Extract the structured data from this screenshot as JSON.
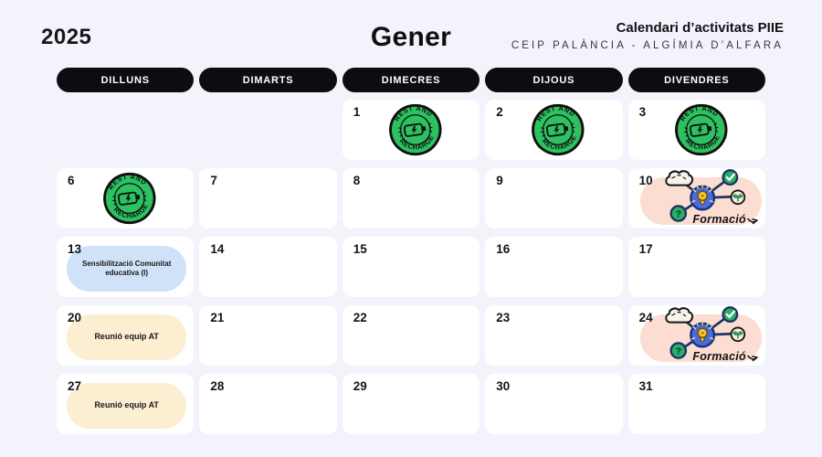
{
  "page": {
    "year": "2025",
    "month": "Gener",
    "title": "Calendari d’activitats PIIE",
    "subtitle": "CEIP PALÀNCIA - ALGÍMIA D’ALFARA"
  },
  "weekdays": [
    "DILLUNS",
    "DIMARTS",
    "DIMECRES",
    "DIJOUS",
    "DIVENDRES"
  ],
  "events": {
    "rest_badge": {
      "top": "REST AND",
      "bottom": "RECHARGE"
    },
    "formacio": {
      "label": "Formació"
    }
  },
  "colors": {
    "background": "#f3f3fb",
    "card": "#ffffff",
    "weekday_pill": "#0d0d11",
    "badge_green": "#2cc261",
    "event_blue": "#cfe2f7",
    "event_yellow": "#fceed0",
    "event_peach": "#fbddd1"
  },
  "cells": [
    {
      "type": "blank"
    },
    {
      "type": "blank"
    },
    {
      "day": "1",
      "type": "rest"
    },
    {
      "day": "2",
      "type": "rest"
    },
    {
      "day": "3",
      "type": "rest"
    },
    {
      "day": "6",
      "type": "rest"
    },
    {
      "day": "7",
      "type": "plain"
    },
    {
      "day": "8",
      "type": "plain"
    },
    {
      "day": "9",
      "type": "plain"
    },
    {
      "day": "10",
      "type": "formacio"
    },
    {
      "day": "13",
      "type": "pill",
      "color": "blue",
      "label": "Sensibilització Comunitat educativa (I)"
    },
    {
      "day": "14",
      "type": "plain"
    },
    {
      "day": "15",
      "type": "plain"
    },
    {
      "day": "16",
      "type": "plain"
    },
    {
      "day": "17",
      "type": "plain"
    },
    {
      "day": "20",
      "type": "pill",
      "color": "yellow",
      "label": "Reunió equip AT"
    },
    {
      "day": "21",
      "type": "plain"
    },
    {
      "day": "22",
      "type": "plain"
    },
    {
      "day": "23",
      "type": "plain"
    },
    {
      "day": "24",
      "type": "formacio"
    },
    {
      "day": "27",
      "type": "pill",
      "color": "yellow",
      "label": "Reunió equip AT"
    },
    {
      "day": "28",
      "type": "plain"
    },
    {
      "day": "29",
      "type": "plain"
    },
    {
      "day": "30",
      "type": "plain"
    },
    {
      "day": "31",
      "type": "plain"
    }
  ]
}
